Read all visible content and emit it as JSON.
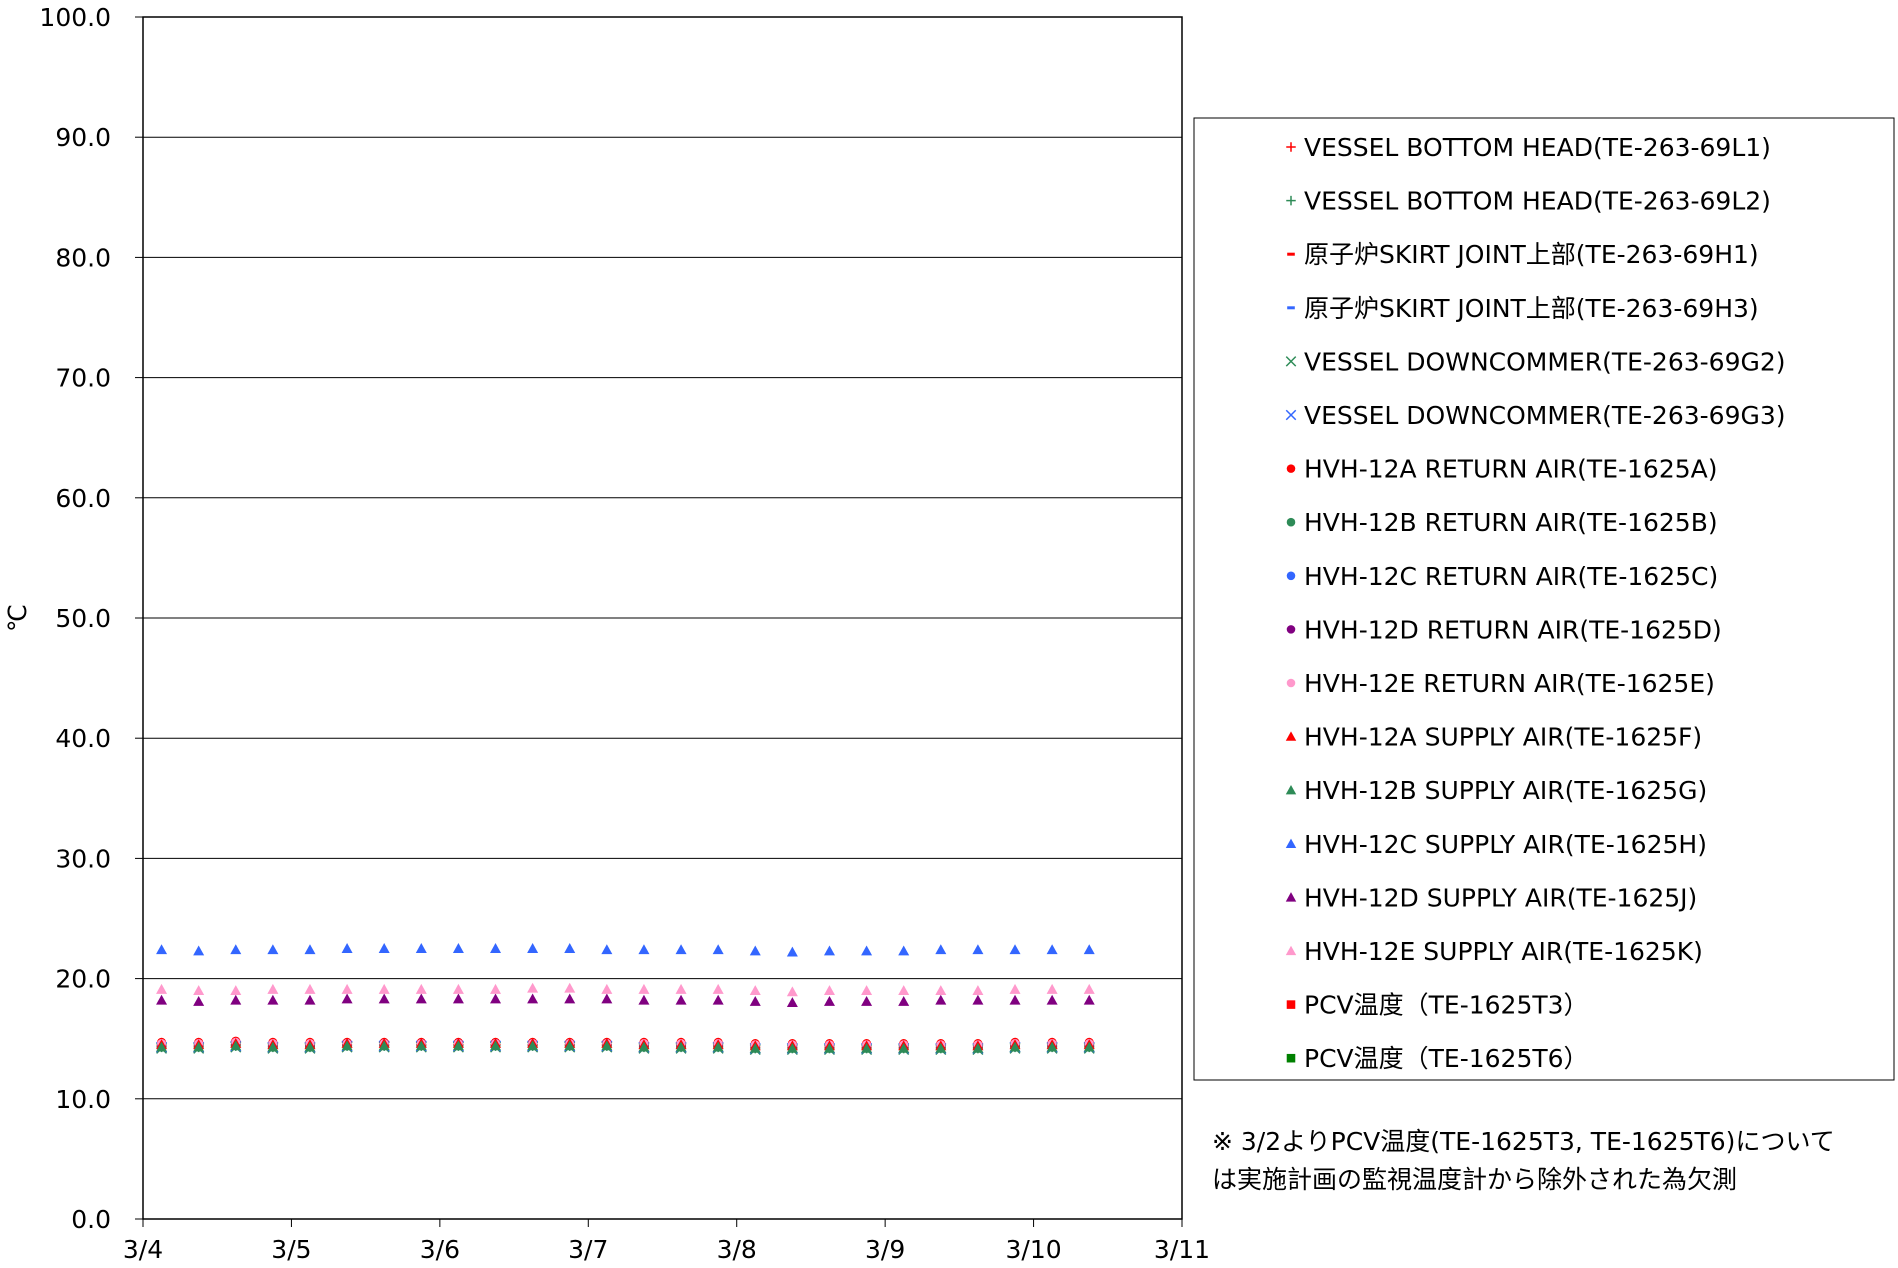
{
  "chart_data": {
    "type": "scatter",
    "ylabel": "℃",
    "ylim": [
      0,
      100
    ],
    "y_ticks": [
      "0.0",
      "10.0",
      "20.0",
      "30.0",
      "40.0",
      "50.0",
      "60.0",
      "70.0",
      "80.0",
      "90.0",
      "100.0"
    ],
    "xlim": [
      "3/4",
      "3/11"
    ],
    "x_ticks": [
      "3/4",
      "3/5",
      "3/6",
      "3/7",
      "3/8",
      "3/9",
      "3/10",
      "3/11"
    ],
    "x_day_values": [
      4,
      5,
      6,
      7,
      8,
      9,
      10,
      11
    ],
    "grid": "horizontal",
    "legend_position": "right",
    "x": [
      4.125,
      4.375,
      4.625,
      4.875,
      5.125,
      5.375,
      5.625,
      5.875,
      6.125,
      6.375,
      6.625,
      6.875,
      7.125,
      7.375,
      7.625,
      7.875,
      8.125,
      8.375,
      8.625,
      8.875,
      9.125,
      9.375,
      9.625,
      9.875,
      10.125,
      10.375
    ],
    "series": [
      {
        "name": "VESSEL BOTTOM HEAD(TE-263-69L1)",
        "marker": "plus",
        "color": "#ff0000",
        "values": [
          14.4,
          14.4,
          14.5,
          14.4,
          14.4,
          14.5,
          14.5,
          14.5,
          14.5,
          14.5,
          14.5,
          14.5,
          14.5,
          14.4,
          14.4,
          14.4,
          14.3,
          14.3,
          14.3,
          14.3,
          14.3,
          14.3,
          14.3,
          14.4,
          14.4,
          14.4
        ]
      },
      {
        "name": "VESSEL BOTTOM HEAD(TE-263-69L2)",
        "marker": "plus",
        "color": "#2e8b57",
        "values": [
          14.3,
          14.3,
          14.4,
          14.3,
          14.3,
          14.4,
          14.4,
          14.4,
          14.4,
          14.4,
          14.4,
          14.4,
          14.4,
          14.3,
          14.3,
          14.3,
          14.2,
          14.2,
          14.2,
          14.2,
          14.2,
          14.2,
          14.2,
          14.3,
          14.3,
          14.3
        ]
      },
      {
        "name": "原子炉SKIRT JOINT上部(TE-263-69H1)",
        "marker": "dash",
        "color": "#ff0000",
        "values": [
          14.5,
          14.5,
          14.6,
          14.5,
          14.5,
          14.6,
          14.6,
          14.6,
          14.6,
          14.6,
          14.6,
          14.6,
          14.6,
          14.5,
          14.5,
          14.5,
          14.4,
          14.4,
          14.4,
          14.4,
          14.4,
          14.4,
          14.4,
          14.5,
          14.5,
          14.5
        ]
      },
      {
        "name": "原子炉SKIRT JOINT上部(TE-263-69H3)",
        "marker": "dash",
        "color": "#3366ff",
        "values": [
          14.4,
          14.4,
          14.5,
          14.4,
          14.4,
          14.5,
          14.5,
          14.5,
          14.5,
          14.5,
          14.5,
          14.5,
          14.5,
          14.4,
          14.4,
          14.4,
          14.3,
          14.3,
          14.3,
          14.3,
          14.3,
          14.3,
          14.3,
          14.4,
          14.4,
          14.4
        ]
      },
      {
        "name": "VESSEL DOWNCOMMER(TE-263-69G2)",
        "marker": "x",
        "color": "#2e8b57",
        "values": [
          14.2,
          14.2,
          14.3,
          14.2,
          14.2,
          14.3,
          14.3,
          14.3,
          14.3,
          14.3,
          14.3,
          14.3,
          14.3,
          14.2,
          14.2,
          14.2,
          14.1,
          14.1,
          14.1,
          14.1,
          14.1,
          14.1,
          14.1,
          14.2,
          14.2,
          14.2
        ]
      },
      {
        "name": "VESSEL DOWNCOMMER(TE-263-69G3)",
        "marker": "x",
        "color": "#3366ff",
        "values": [
          14.3,
          14.3,
          14.4,
          14.3,
          14.3,
          14.4,
          14.4,
          14.4,
          14.4,
          14.4,
          14.4,
          14.4,
          14.4,
          14.3,
          14.3,
          14.3,
          14.2,
          14.2,
          14.2,
          14.2,
          14.2,
          14.2,
          14.2,
          14.3,
          14.3,
          14.3
        ]
      },
      {
        "name": "HVH-12A RETURN AIR(TE-1625A)",
        "marker": "circle",
        "color": "#ff0000",
        "values": [
          14.7,
          14.7,
          14.8,
          14.7,
          14.7,
          14.7,
          14.7,
          14.7,
          14.7,
          14.7,
          14.7,
          14.7,
          14.7,
          14.7,
          14.7,
          14.7,
          14.6,
          14.6,
          14.6,
          14.6,
          14.6,
          14.6,
          14.6,
          14.7,
          14.7,
          14.7
        ]
      },
      {
        "name": "HVH-12B RETURN AIR(TE-1625B)",
        "marker": "circle",
        "color": "#2e8b57",
        "values": [
          14.4,
          14.4,
          14.5,
          14.4,
          14.4,
          14.5,
          14.5,
          14.5,
          14.5,
          14.5,
          14.5,
          14.5,
          14.5,
          14.4,
          14.4,
          14.4,
          14.3,
          14.3,
          14.3,
          14.3,
          14.3,
          14.3,
          14.3,
          14.4,
          14.4,
          14.4
        ]
      },
      {
        "name": "HVH-12C RETURN AIR(TE-1625C)",
        "marker": "circle",
        "color": "#3366ff",
        "values": [
          14.5,
          14.5,
          14.6,
          14.5,
          14.5,
          14.6,
          14.6,
          14.6,
          14.6,
          14.6,
          14.6,
          14.6,
          14.6,
          14.5,
          14.5,
          14.5,
          14.4,
          14.4,
          14.4,
          14.4,
          14.4,
          14.4,
          14.4,
          14.5,
          14.5,
          14.5
        ]
      },
      {
        "name": "HVH-12D RETURN AIR(TE-1625D)",
        "marker": "circle",
        "color": "#800080",
        "values": [
          14.5,
          14.5,
          14.6,
          14.5,
          14.5,
          14.5,
          14.5,
          14.6,
          14.6,
          14.5,
          14.5,
          14.5,
          14.5,
          14.5,
          14.5,
          14.5,
          14.4,
          14.4,
          14.4,
          14.4,
          14.4,
          14.4,
          14.4,
          14.5,
          14.5,
          14.5
        ]
      },
      {
        "name": "HVH-12E RETURN AIR(TE-1625E)",
        "marker": "circle",
        "color": "#ff99cc",
        "values": [
          14.6,
          14.6,
          14.7,
          14.6,
          14.6,
          14.6,
          14.6,
          14.6,
          14.6,
          14.6,
          14.6,
          14.6,
          14.6,
          14.6,
          14.6,
          14.6,
          14.5,
          14.5,
          14.5,
          14.5,
          14.5,
          14.5,
          14.5,
          14.6,
          14.6,
          14.6
        ]
      },
      {
        "name": "HVH-12A SUPPLY AIR(TE-1625F)",
        "marker": "triangle",
        "color": "#ff0000",
        "values": [
          14.5,
          14.5,
          14.6,
          14.5,
          14.5,
          14.6,
          14.6,
          14.6,
          14.6,
          14.6,
          14.6,
          14.6,
          14.6,
          14.5,
          14.5,
          14.5,
          14.4,
          14.4,
          14.4,
          14.4,
          14.4,
          14.4,
          14.4,
          14.5,
          14.5,
          14.5
        ]
      },
      {
        "name": "HVH-12B SUPPLY AIR(TE-1625G)",
        "marker": "triangle",
        "color": "#2e8b57",
        "values": [
          14.3,
          14.3,
          14.4,
          14.3,
          14.3,
          14.4,
          14.4,
          14.4,
          14.4,
          14.4,
          14.4,
          14.4,
          14.4,
          14.3,
          14.3,
          14.3,
          14.2,
          14.2,
          14.2,
          14.2,
          14.2,
          14.2,
          14.2,
          14.3,
          14.3,
          14.3
        ]
      },
      {
        "name": "HVH-12C SUPPLY AIR(TE-1625H)",
        "marker": "triangle",
        "color": "#3366ff",
        "values": [
          22.4,
          22.3,
          22.4,
          22.4,
          22.4,
          22.5,
          22.5,
          22.5,
          22.5,
          22.5,
          22.5,
          22.5,
          22.4,
          22.4,
          22.4,
          22.4,
          22.3,
          22.2,
          22.3,
          22.3,
          22.3,
          22.4,
          22.4,
          22.4,
          22.4,
          22.4
        ]
      },
      {
        "name": "HVH-12D SUPPLY AIR(TE-1625J)",
        "marker": "triangle",
        "color": "#800080",
        "values": [
          18.2,
          18.1,
          18.2,
          18.2,
          18.2,
          18.3,
          18.3,
          18.3,
          18.3,
          18.3,
          18.3,
          18.3,
          18.3,
          18.2,
          18.2,
          18.2,
          18.1,
          18.0,
          18.1,
          18.1,
          18.1,
          18.2,
          18.2,
          18.2,
          18.2,
          18.2
        ]
      },
      {
        "name": "HVH-12E SUPPLY AIR(TE-1625K)",
        "marker": "triangle",
        "color": "#ff99cc",
        "values": [
          19.1,
          19.0,
          19.0,
          19.1,
          19.1,
          19.1,
          19.1,
          19.1,
          19.1,
          19.1,
          19.2,
          19.2,
          19.1,
          19.1,
          19.1,
          19.1,
          19.0,
          18.9,
          19.0,
          19.0,
          19.0,
          19.0,
          19.0,
          19.1,
          19.1,
          19.1
        ]
      },
      {
        "name": "PCV温度（TE-1625T3）",
        "marker": "square",
        "color": "#ff0000",
        "values": []
      },
      {
        "name": "PCV温度（TE-1625T6）",
        "marker": "square",
        "color": "#008000",
        "values": []
      }
    ],
    "annotation": [
      "※ 3/2よりPCV温度(TE-1625T3, TE-1625T6)について",
      "は実施計画の監視温度計から除外された為欠測"
    ]
  }
}
